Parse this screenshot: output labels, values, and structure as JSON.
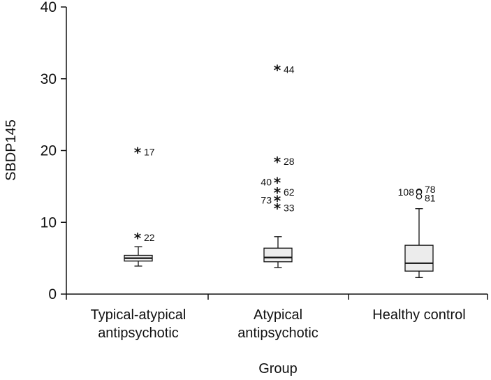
{
  "chart_data": {
    "type": "box",
    "xlabel": "Group",
    "ylabel": "SBDP145",
    "ylim": [
      0,
      40
    ],
    "yticks": [
      "0",
      "10",
      "20",
      "30",
      "40"
    ],
    "grid": false,
    "categories": [
      [
        "Typical-atypical",
        "antipsychotic"
      ],
      [
        "Atypical",
        "antipsychotic"
      ],
      [
        "Healthy control"
      ]
    ],
    "boxes": [
      {
        "whisker_low": 3.9,
        "q1": 4.6,
        "median": 5.0,
        "q3": 5.4,
        "whisker_high": 6.6,
        "outliers": [
          {
            "value": 19.8,
            "label": "17",
            "marker": "star"
          },
          {
            "value": 7.9,
            "label": "22",
            "marker": "star"
          }
        ]
      },
      {
        "whisker_low": 3.7,
        "q1": 4.5,
        "median": 5.1,
        "q3": 6.4,
        "whisker_high": 8.0,
        "outliers": [
          {
            "value": 31.3,
            "label": "44",
            "marker": "star"
          },
          {
            "value": 18.5,
            "label": "28",
            "marker": "star"
          },
          {
            "value": 15.6,
            "label": "40",
            "marker": "star"
          },
          {
            "value": 14.2,
            "label": "62",
            "marker": "star"
          },
          {
            "value": 13.1,
            "label": "73",
            "marker": "star"
          },
          {
            "value": 12.0,
            "label": "33",
            "marker": "star"
          }
        ]
      },
      {
        "whisker_low": 2.3,
        "q1": 3.2,
        "median": 4.3,
        "q3": 6.8,
        "whisker_high": 11.9,
        "outliers": [
          {
            "value": 14.3,
            "label": "108",
            "marker": "circle"
          },
          {
            "value": 14.2,
            "label": "78",
            "marker": "circle"
          },
          {
            "value": 13.6,
            "label": "81",
            "marker": "circle"
          }
        ]
      }
    ]
  }
}
